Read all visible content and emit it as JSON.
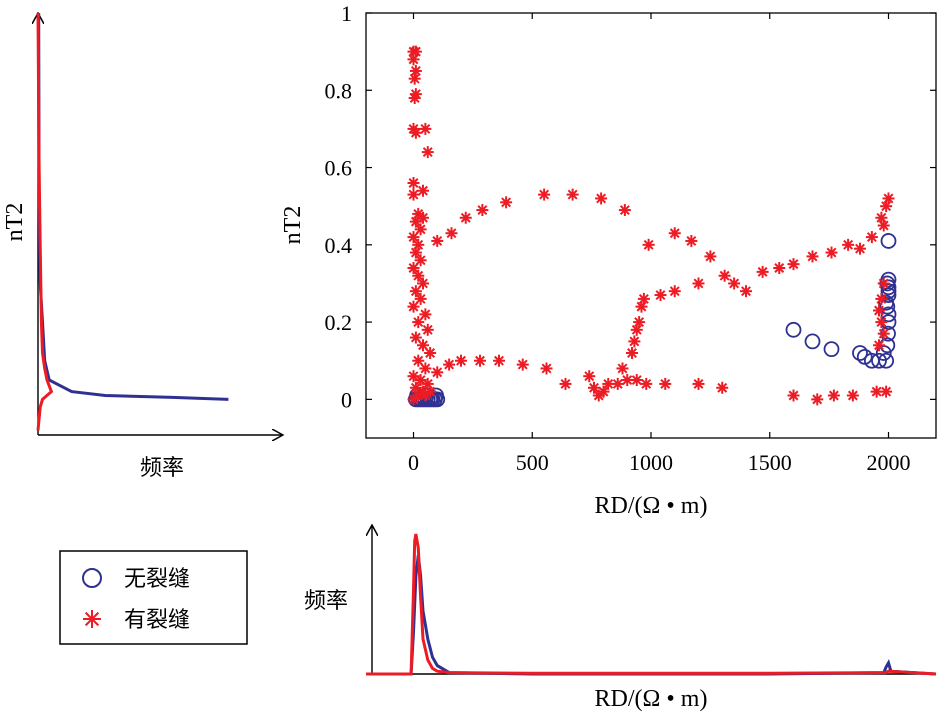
{
  "colors": {
    "no_fracture": "#2e3192",
    "fracture": "#ed1c24",
    "axis": "#000000"
  },
  "legend": {
    "entries": [
      {
        "label": "无裂缝",
        "marker": "circle",
        "color": "#2e3192"
      },
      {
        "label": "有裂缝",
        "marker": "asterisk",
        "color": "#ed1c24"
      }
    ]
  },
  "left_panel": {
    "ylabel": "nT2",
    "xlabel": "频率"
  },
  "bottom_panel": {
    "ylabel": "频率",
    "xlabel": "RD/(Ω • m)"
  },
  "chart_data": [
    {
      "type": "scatter",
      "title": "",
      "xlabel": "RD/(Ω • m)",
      "ylabel": "nT2",
      "xlim": [
        -200,
        2200
      ],
      "ylim": [
        -0.1,
        1.0
      ],
      "xticks": [
        "0",
        "500",
        "1000",
        "1500",
        "2000"
      ],
      "yticks": [
        "0",
        "0.2",
        "0.4",
        "0.6",
        "0.8",
        "1"
      ],
      "grid": false,
      "legend_position": "outside-bottom-left",
      "series": [
        {
          "name": "无裂缝",
          "marker": "circle",
          "points": [
            [
              10,
              0.0
            ],
            [
              20,
              0.0
            ],
            [
              30,
              0.0
            ],
            [
              40,
              0.0
            ],
            [
              50,
              0.0
            ],
            [
              60,
              0.0
            ],
            [
              70,
              0.0
            ],
            [
              80,
              0.0
            ],
            [
              90,
              0.0
            ],
            [
              100,
              0.0
            ],
            [
              15,
              0.01
            ],
            [
              35,
              0.005
            ],
            [
              55,
              0.01
            ],
            [
              75,
              0.005
            ],
            [
              95,
              0.01
            ],
            [
              1600,
              0.18
            ],
            [
              1680,
              0.15
            ],
            [
              1760,
              0.13
            ],
            [
              1880,
              0.12
            ],
            [
              1900,
              0.11
            ],
            [
              1930,
              0.1
            ],
            [
              1960,
              0.1
            ],
            [
              1980,
              0.12
            ],
            [
              1990,
              0.1
            ],
            [
              1995,
              0.14
            ],
            [
              1998,
              0.17
            ],
            [
              2000,
              0.2
            ],
            [
              2000,
              0.22
            ],
            [
              1995,
              0.24
            ],
            [
              2000,
              0.27
            ],
            [
              2000,
              0.28
            ],
            [
              2000,
              0.29
            ],
            [
              1995,
              0.3
            ],
            [
              2000,
              0.31
            ],
            [
              1990,
              0.25
            ],
            [
              2000,
              0.41
            ]
          ]
        },
        {
          "name": "有裂缝",
          "marker": "asterisk",
          "points": [
            [
              0,
              0.9
            ],
            [
              10,
              0.9
            ],
            [
              0,
              0.88
            ],
            [
              10,
              0.85
            ],
            [
              5,
              0.83
            ],
            [
              10,
              0.79
            ],
            [
              5,
              0.78
            ],
            [
              0,
              0.7
            ],
            [
              10,
              0.69
            ],
            [
              50,
              0.7
            ],
            [
              60,
              0.64
            ],
            [
              0,
              0.56
            ],
            [
              40,
              0.54
            ],
            [
              0,
              0.53
            ],
            [
              20,
              0.48
            ],
            [
              40,
              0.47
            ],
            [
              10,
              0.46
            ],
            [
              30,
              0.44
            ],
            [
              0,
              0.42
            ],
            [
              20,
              0.4
            ],
            [
              10,
              0.38
            ],
            [
              30,
              0.36
            ],
            [
              0,
              0.34
            ],
            [
              20,
              0.32
            ],
            [
              40,
              0.3
            ],
            [
              10,
              0.28
            ],
            [
              30,
              0.26
            ],
            [
              0,
              0.24
            ],
            [
              50,
              0.22
            ],
            [
              20,
              0.2
            ],
            [
              60,
              0.18
            ],
            [
              10,
              0.16
            ],
            [
              40,
              0.14
            ],
            [
              70,
              0.12
            ],
            [
              20,
              0.1
            ],
            [
              50,
              0.08
            ],
            [
              0,
              0.06
            ],
            [
              30,
              0.05
            ],
            [
              60,
              0.04
            ],
            [
              10,
              0.03
            ],
            [
              40,
              0.02
            ],
            [
              70,
              0.02
            ],
            [
              20,
              0.01
            ],
            [
              50,
              0.01
            ],
            [
              0,
              0.0
            ],
            [
              100,
              0.07
            ],
            [
              150,
              0.09
            ],
            [
              200,
              0.1
            ],
            [
              280,
              0.1
            ],
            [
              360,
              0.1
            ],
            [
              460,
              0.09
            ],
            [
              560,
              0.08
            ],
            [
              640,
              0.04
            ],
            [
              740,
              0.06
            ],
            [
              760,
              0.03
            ],
            [
              780,
              0.01
            ],
            [
              800,
              0.02
            ],
            [
              820,
              0.04
            ],
            [
              860,
              0.04
            ],
            [
              900,
              0.05
            ],
            [
              940,
              0.05
            ],
            [
              980,
              0.04
            ],
            [
              1060,
              0.04
            ],
            [
              1200,
              0.04
            ],
            [
              1300,
              0.03
            ],
            [
              100,
              0.41
            ],
            [
              160,
              0.43
            ],
            [
              220,
              0.47
            ],
            [
              290,
              0.49
            ],
            [
              390,
              0.51
            ],
            [
              550,
              0.53
            ],
            [
              670,
              0.53
            ],
            [
              790,
              0.52
            ],
            [
              890,
              0.49
            ],
            [
              990,
              0.4
            ],
            [
              1100,
              0.43
            ],
            [
              1170,
              0.41
            ],
            [
              1250,
              0.37
            ],
            [
              1310,
              0.32
            ],
            [
              1350,
              0.3
            ],
            [
              1400,
              0.28
            ],
            [
              1470,
              0.33
            ],
            [
              1540,
              0.34
            ],
            [
              1600,
              0.35
            ],
            [
              1680,
              0.37
            ],
            [
              1760,
              0.38
            ],
            [
              1830,
              0.4
            ],
            [
              1880,
              0.39
            ],
            [
              1930,
              0.42
            ],
            [
              1970,
              0.47
            ],
            [
              2000,
              0.52
            ],
            [
              1990,
              0.5
            ],
            [
              1980,
              0.45
            ],
            [
              880,
              0.08
            ],
            [
              920,
              0.12
            ],
            [
              930,
              0.15
            ],
            [
              940,
              0.18
            ],
            [
              950,
              0.2
            ],
            [
              960,
              0.24
            ],
            [
              970,
              0.26
            ],
            [
              1040,
              0.27
            ],
            [
              1100,
              0.28
            ],
            [
              1200,
              0.3
            ],
            [
              1600,
              0.01
            ],
            [
              1700,
              0.0
            ],
            [
              1770,
              0.01
            ],
            [
              1850,
              0.01
            ],
            [
              1950,
              0.02
            ],
            [
              1990,
              0.02
            ],
            [
              1980,
              0.3
            ],
            [
              1970,
              0.26
            ],
            [
              1960,
              0.23
            ],
            [
              1970,
              0.2
            ],
            [
              1980,
              0.17
            ],
            [
              1960,
              0.14
            ]
          ]
        }
      ]
    },
    {
      "type": "line",
      "title": "",
      "xlabel": "频率",
      "ylabel": "nT2",
      "orientation": "vertical",
      "ylim": [
        -0.1,
        1.0
      ],
      "series": [
        {
          "name": "无裂缝",
          "y": [
            0.0,
            0.005,
            0.01,
            0.02,
            0.05,
            0.1,
            0.2,
            0.3,
            0.5,
            1.0
          ],
          "freq": [
            0.85,
            0.6,
            0.3,
            0.15,
            0.05,
            0.03,
            0.02,
            0.01,
            0.005,
            0.003
          ]
        },
        {
          "name": "有裂缝",
          "y": [
            -0.08,
            -0.02,
            0.0,
            0.02,
            0.05,
            0.08,
            0.12,
            0.2,
            0.4,
            0.6,
            1.0
          ],
          "freq": [
            0.0,
            0.01,
            0.02,
            0.06,
            0.04,
            0.03,
            0.02,
            0.015,
            0.01,
            0.005,
            0.0
          ]
        }
      ]
    },
    {
      "type": "line",
      "title": "",
      "xlabel": "RD/(Ω • m)",
      "ylabel": "频率",
      "xlim": [
        -200,
        2200
      ],
      "series": [
        {
          "name": "无裂缝",
          "x": [
            -200,
            -10,
            0,
            10,
            20,
            30,
            40,
            60,
            80,
            100,
            150,
            500,
            1000,
            1500,
            1980,
            1990,
            2000,
            2010,
            2200
          ],
          "freq": [
            0.0,
            0.0,
            0.3,
            0.7,
            0.85,
            0.7,
            0.45,
            0.25,
            0.12,
            0.06,
            0.01,
            0.0,
            0.0,
            0.0,
            0.01,
            0.05,
            0.08,
            0.02,
            0.0
          ]
        },
        {
          "name": "有裂缝",
          "x": [
            -200,
            -10,
            0,
            5,
            10,
            20,
            30,
            40,
            60,
            80,
            100,
            150,
            500,
            1000,
            1500,
            1990,
            2000,
            2200
          ],
          "freq": [
            0.0,
            0.0,
            0.6,
            0.95,
            1.0,
            0.9,
            0.55,
            0.25,
            0.1,
            0.04,
            0.02,
            0.01,
            0.005,
            0.005,
            0.005,
            0.01,
            0.02,
            0.0
          ]
        }
      ]
    }
  ]
}
